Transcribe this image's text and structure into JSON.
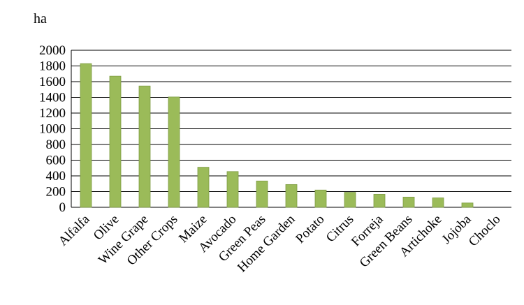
{
  "unit_label": "ha",
  "colors": {
    "bar": "#9bbb59",
    "bar_edge": "#7e9c43",
    "grid": "#000000"
  },
  "chart_data": {
    "type": "bar",
    "title": "",
    "xlabel": "",
    "ylabel": "ha",
    "ylim": [
      0,
      2000
    ],
    "yticks": [
      0,
      200,
      400,
      600,
      800,
      1000,
      1200,
      1400,
      1600,
      1800,
      2000
    ],
    "grid": true,
    "categories": [
      "Alfalfa",
      "Olive",
      "Wine Grape",
      "Other Crops",
      "Maize",
      "Avocado",
      "Green Peas",
      "Home Garden",
      "Potato",
      "Citrus",
      "Forreja",
      "Green Beans",
      "Artichoke",
      "Jojoba",
      "Choclo"
    ],
    "values": [
      1830,
      1670,
      1545,
      1405,
      510,
      455,
      335,
      290,
      220,
      190,
      165,
      130,
      120,
      55,
      0
    ]
  }
}
